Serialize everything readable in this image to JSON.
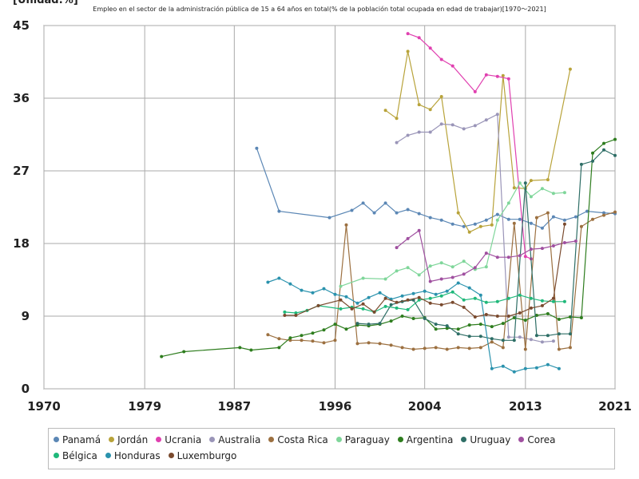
{
  "chart_data": {
    "type": "line",
    "unit_label": "[Unidad:%]",
    "title": "Empleo en el sector de la administración pública de 15 a 64 años en total(% de la población total ocupada en edad de trabajar)[1970〜2021]",
    "xlabel": "",
    "ylabel": "",
    "xlim": [
      1970,
      2021
    ],
    "ylim": [
      0,
      45
    ],
    "xticks": [
      1970,
      1979,
      1987,
      1996,
      2004,
      2013,
      2021
    ],
    "yticks": [
      0,
      9,
      18,
      27,
      36,
      45
    ],
    "grid": true,
    "legend_position": "bottom",
    "series": [
      {
        "name": "Panamá",
        "color": "#5b87b5",
        "points": [
          [
            1989,
            29.8
          ],
          [
            1991,
            22
          ],
          [
            1995.5,
            21.2
          ],
          [
            1997.5,
            22.1
          ],
          [
            1998.5,
            23
          ],
          [
            1999.5,
            21.8
          ],
          [
            2000.5,
            23
          ],
          [
            2001.5,
            21.8
          ],
          [
            2002.5,
            22.2
          ],
          [
            2003.5,
            21.7
          ],
          [
            2004.5,
            21.2
          ],
          [
            2005.5,
            20.9
          ],
          [
            2006.5,
            20.4
          ],
          [
            2007.5,
            20.1
          ],
          [
            2008.5,
            20.4
          ],
          [
            2009.5,
            20.9
          ],
          [
            2010.5,
            21.6
          ],
          [
            2011.5,
            21
          ],
          [
            2012.5,
            21
          ],
          [
            2013.5,
            20.5
          ],
          [
            2014.5,
            19.9
          ],
          [
            2015.5,
            21.3
          ],
          [
            2016.5,
            20.9
          ],
          [
            2017.5,
            21.3
          ],
          [
            2018.5,
            22
          ],
          [
            2020,
            21.8
          ],
          [
            2021,
            21.7
          ]
        ]
      },
      {
        "name": "Jordán",
        "color": "#b8a33a",
        "points": [
          [
            2000.5,
            34.5
          ],
          [
            2001.5,
            33.5
          ],
          [
            2002.5,
            41.8
          ],
          [
            2003.5,
            35.2
          ],
          [
            2004.5,
            34.6
          ],
          [
            2005.5,
            36.2
          ],
          [
            2007,
            21.8
          ],
          [
            2008,
            19.4
          ],
          [
            2009,
            20.1
          ],
          [
            2010,
            20.3
          ],
          [
            2011,
            38.8
          ],
          [
            2012,
            24.9
          ],
          [
            2013,
            24.8
          ],
          [
            2013.5,
            25.8
          ],
          [
            2015,
            25.9
          ],
          [
            2017,
            39.6
          ]
        ]
      },
      {
        "name": "Ucrania",
        "color": "#e040b0",
        "points": [
          [
            2002.5,
            44
          ],
          [
            2003.5,
            43.5
          ],
          [
            2004.5,
            42.2
          ],
          [
            2005.5,
            40.8
          ],
          [
            2006.5,
            40
          ],
          [
            2008.5,
            36.8
          ],
          [
            2009.5,
            38.9
          ],
          [
            2010.5,
            38.7
          ],
          [
            2011.5,
            38.4
          ],
          [
            2013,
            16.4
          ],
          [
            2013.5,
            16.1
          ]
        ]
      },
      {
        "name": "Australia",
        "color": "#9a95b8",
        "points": [
          [
            2001.5,
            30.5
          ],
          [
            2002.5,
            31.4
          ],
          [
            2003.5,
            31.8
          ],
          [
            2004.5,
            31.8
          ],
          [
            2005.5,
            32.8
          ],
          [
            2006.5,
            32.7
          ],
          [
            2007.5,
            32.2
          ],
          [
            2008.5,
            32.6
          ],
          [
            2009.5,
            33.3
          ],
          [
            2010.5,
            34
          ],
          [
            2011.5,
            6.4
          ],
          [
            2012.5,
            6.4
          ],
          [
            2013.5,
            6.1
          ],
          [
            2014.5,
            5.8
          ],
          [
            2015.5,
            5.9
          ]
        ]
      },
      {
        "name": "Costa Rica",
        "color": "#9c7040",
        "points": [
          [
            1990,
            6.7
          ],
          [
            1991,
            6.2
          ],
          [
            1992,
            6
          ],
          [
            1993,
            6
          ],
          [
            1994,
            5.9
          ],
          [
            1995,
            5.7
          ],
          [
            1996,
            6
          ],
          [
            1997,
            20.3
          ],
          [
            1998,
            5.6
          ],
          [
            1999,
            5.7
          ],
          [
            2000,
            5.6
          ],
          [
            2001,
            5.4
          ],
          [
            2002,
            5.1
          ],
          [
            2003,
            4.9
          ],
          [
            2004,
            5
          ],
          [
            2005,
            5.1
          ],
          [
            2006,
            4.9
          ],
          [
            2007,
            5.1
          ],
          [
            2008,
            5
          ],
          [
            2009,
            5.1
          ],
          [
            2010,
            5.8
          ],
          [
            2011,
            5.1
          ],
          [
            2012,
            20.5
          ],
          [
            2013,
            4.9
          ],
          [
            2014,
            21.2
          ],
          [
            2015,
            21.8
          ],
          [
            2016,
            4.9
          ],
          [
            2017,
            5.1
          ],
          [
            2018,
            20.1
          ],
          [
            2019,
            21
          ],
          [
            2020,
            21.5
          ],
          [
            2021,
            21.9
          ]
        ]
      },
      {
        "name": "Paraguay",
        "color": "#7fd69a",
        "points": [
          [
            1996.5,
            12.7
          ],
          [
            1998.5,
            13.7
          ],
          [
            2000.5,
            13.6
          ],
          [
            2001.5,
            14.6
          ],
          [
            2002.5,
            15
          ],
          [
            2003.5,
            14.1
          ],
          [
            2004.5,
            15.2
          ],
          [
            2005.5,
            15.6
          ],
          [
            2006.5,
            15.1
          ],
          [
            2007.5,
            15.8
          ],
          [
            2008.5,
            14.8
          ],
          [
            2009.5,
            15.1
          ],
          [
            2010.5,
            20.9
          ],
          [
            2011.5,
            23
          ],
          [
            2012.5,
            25.5
          ],
          [
            2013.5,
            23.8
          ],
          [
            2014.5,
            24.8
          ],
          [
            2015.5,
            24.2
          ],
          [
            2016.5,
            24.3
          ]
        ]
      },
      {
        "name": "Argentina",
        "color": "#2e7d1e",
        "points": [
          [
            1980.5,
            4
          ],
          [
            1982.5,
            4.6
          ],
          [
            1987.5,
            5.1
          ],
          [
            1988.5,
            4.8
          ],
          [
            1991,
            5.1
          ],
          [
            1992,
            6.3
          ],
          [
            1993,
            6.6
          ],
          [
            1994,
            6.9
          ],
          [
            1995,
            7.3
          ],
          [
            1996,
            8
          ],
          [
            1997,
            7.4
          ],
          [
            1998,
            7.9
          ],
          [
            1999,
            7.8
          ],
          [
            2000,
            8
          ],
          [
            2001,
            8.4
          ],
          [
            2002,
            9
          ],
          [
            2003,
            8.7
          ],
          [
            2004,
            8.8
          ],
          [
            2005,
            7.4
          ],
          [
            2006,
            7.5
          ],
          [
            2007,
            7.4
          ],
          [
            2008,
            7.9
          ],
          [
            2009,
            8
          ],
          [
            2010,
            7.7
          ],
          [
            2011,
            8.1
          ],
          [
            2012,
            8.8
          ],
          [
            2013,
            8.5
          ],
          [
            2014,
            9.1
          ],
          [
            2015,
            9.3
          ],
          [
            2016,
            8.6
          ],
          [
            2017,
            8.9
          ],
          [
            2018,
            8.8
          ],
          [
            2019,
            29.2
          ],
          [
            2020,
            30.4
          ],
          [
            2021,
            30.9
          ]
        ]
      },
      {
        "name": "Uruguay",
        "color": "#2e6e66",
        "points": [
          [
            1998,
            8.1
          ],
          [
            1999,
            8
          ],
          [
            2000,
            8.1
          ],
          [
            2001,
            10.4
          ],
          [
            2002,
            10.8
          ],
          [
            2003,
            11
          ],
          [
            2004,
            8.7
          ],
          [
            2005,
            8
          ],
          [
            2006,
            7.8
          ],
          [
            2007,
            6.8
          ],
          [
            2008,
            6.5
          ],
          [
            2009,
            6.5
          ],
          [
            2010,
            6.2
          ],
          [
            2011,
            6
          ],
          [
            2012,
            6
          ],
          [
            2013,
            25.5
          ],
          [
            2014,
            6.6
          ],
          [
            2015,
            6.6
          ],
          [
            2016,
            6.8
          ],
          [
            2017,
            6.8
          ],
          [
            2018,
            27.8
          ],
          [
            2019,
            28.2
          ],
          [
            2020,
            29.6
          ],
          [
            2021,
            28.9
          ]
        ]
      },
      {
        "name": "Corea",
        "color": "#a050a0",
        "points": [
          [
            2001.5,
            17.5
          ],
          [
            2002.5,
            18.6
          ],
          [
            2003.5,
            19.6
          ],
          [
            2004.5,
            13.3
          ],
          [
            2005.5,
            13.6
          ],
          [
            2006.5,
            13.8
          ],
          [
            2007.5,
            14.2
          ],
          [
            2008.5,
            15
          ],
          [
            2009.5,
            16.8
          ],
          [
            2010.5,
            16.3
          ],
          [
            2011.5,
            16.3
          ],
          [
            2012.5,
            16.5
          ],
          [
            2013.5,
            17.3
          ],
          [
            2014.5,
            17.4
          ],
          [
            2015.5,
            17.7
          ],
          [
            2016.5,
            18.1
          ],
          [
            2017.5,
            18.3
          ]
        ]
      },
      {
        "name": "Bélgica",
        "color": "#1fb87a",
        "points": [
          [
            1991.5,
            9.5
          ],
          [
            1992.5,
            9.4
          ],
          [
            1993.5,
            9.7
          ],
          [
            1994.5,
            10.3
          ],
          [
            1996.5,
            9.9
          ],
          [
            1997.5,
            10.1
          ],
          [
            1998.5,
            9.9
          ],
          [
            1999.5,
            9.5
          ],
          [
            2000.5,
            10.2
          ],
          [
            2001.5,
            10
          ],
          [
            2002.5,
            9.8
          ],
          [
            2003.5,
            11
          ],
          [
            2004.5,
            11.2
          ],
          [
            2005.5,
            11.5
          ],
          [
            2006.5,
            12
          ],
          [
            2007.5,
            11
          ],
          [
            2008.5,
            11.2
          ],
          [
            2009.5,
            10.7
          ],
          [
            2010.5,
            10.8
          ],
          [
            2011.5,
            11.2
          ],
          [
            2012.5,
            11.6
          ],
          [
            2013.5,
            11.2
          ],
          [
            2014.5,
            10.9
          ],
          [
            2015.5,
            10.8
          ],
          [
            2016.5,
            10.8
          ]
        ]
      },
      {
        "name": "Honduras",
        "color": "#2a92ad",
        "points": [
          [
            1990,
            13.2
          ],
          [
            1991,
            13.7
          ],
          [
            1992,
            13
          ],
          [
            1993,
            12.2
          ],
          [
            1994,
            11.9
          ],
          [
            1995,
            12.4
          ],
          [
            1996,
            11.7
          ],
          [
            1997,
            11.4
          ],
          [
            1998,
            10.6
          ],
          [
            1999,
            11.3
          ],
          [
            2000,
            11.9
          ],
          [
            2001,
            11.1
          ],
          [
            2002,
            11.5
          ],
          [
            2003,
            11.8
          ],
          [
            2004,
            12.1
          ],
          [
            2005,
            11.7
          ],
          [
            2006,
            12.1
          ],
          [
            2007,
            13.1
          ],
          [
            2008,
            12.5
          ],
          [
            2009,
            11.6
          ],
          [
            2010,
            2.5
          ],
          [
            2011,
            2.8
          ],
          [
            2012,
            2.1
          ],
          [
            2013,
            2.5
          ],
          [
            2014,
            2.6
          ],
          [
            2015,
            3
          ],
          [
            2016,
            2.5
          ]
        ]
      },
      {
        "name": "Luxemburgo",
        "color": "#7a4a2e",
        "points": [
          [
            1991.5,
            9.1
          ],
          [
            1992.5,
            9.1
          ],
          [
            1994.5,
            10.3
          ],
          [
            1996.5,
            11
          ],
          [
            1997.5,
            9.9
          ],
          [
            1998.5,
            10.5
          ],
          [
            1999.5,
            9.5
          ],
          [
            2000.5,
            11.2
          ],
          [
            2001.5,
            10.7
          ],
          [
            2002.5,
            11
          ],
          [
            2003.5,
            11.3
          ],
          [
            2004.5,
            10.6
          ],
          [
            2005.5,
            10.4
          ],
          [
            2006.5,
            10.7
          ],
          [
            2007.5,
            10.1
          ],
          [
            2008.5,
            8.9
          ],
          [
            2009.5,
            9.2
          ],
          [
            2010.5,
            9
          ],
          [
            2011.5,
            9
          ],
          [
            2012.5,
            9.4
          ],
          [
            2013.5,
            10
          ],
          [
            2014.5,
            10.3
          ],
          [
            2015.5,
            11.2
          ],
          [
            2016.5,
            20.4
          ]
        ]
      }
    ]
  }
}
